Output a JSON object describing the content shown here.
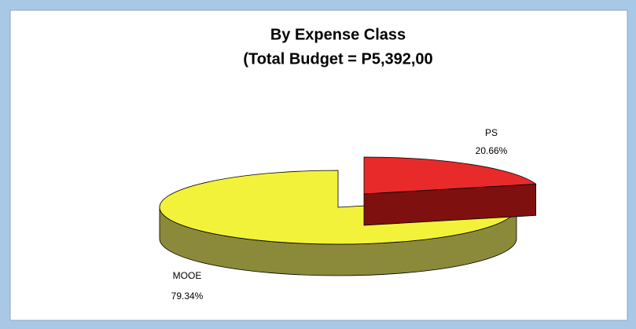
{
  "chart_data": {
    "type": "pie3d",
    "title": "By Expense Class",
    "subtitle": "(Total Budget = P5,392,00",
    "categories": [
      "PS",
      "MOOE"
    ],
    "values": [
      20.66,
      79.34
    ],
    "value_labels": [
      "20.66%",
      "79.34%"
    ],
    "colors": [
      "#e82a2a",
      "#f2f23a"
    ],
    "side_colors": [
      "#7e1010",
      "#8a8a3a"
    ],
    "explode": [
      true,
      false
    ]
  }
}
